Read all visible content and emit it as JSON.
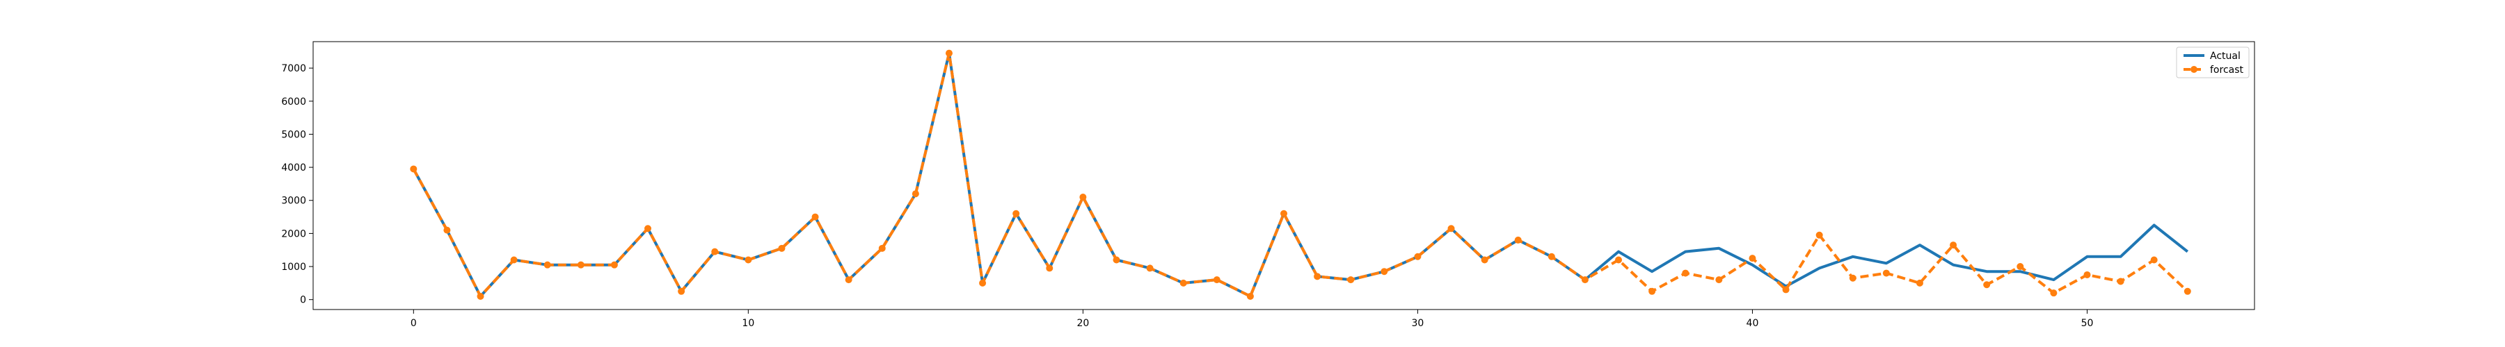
{
  "chart_data": {
    "type": "line",
    "title": "",
    "xlabel": "",
    "ylabel": "",
    "xlim": [
      -3,
      55
    ],
    "ylim": [
      -300,
      7800
    ],
    "xticks": [
      0,
      10,
      20,
      30,
      40,
      50
    ],
    "yticks": [
      0,
      1000,
      2000,
      3000,
      4000,
      5000,
      6000,
      7000
    ],
    "grid": false,
    "legend": "top-right",
    "series": [
      {
        "name": "Actual",
        "color": "#1f77b4",
        "style": "solid",
        "marker": "none",
        "x": [
          0,
          1,
          2,
          3,
          4,
          5,
          6,
          7,
          8,
          9,
          10,
          11,
          12,
          13,
          14,
          15,
          16,
          17,
          18,
          19,
          20,
          21,
          22,
          23,
          24,
          25,
          26,
          27,
          28,
          29,
          30,
          31,
          32,
          33,
          34,
          35,
          36,
          37,
          38,
          39,
          40,
          41,
          42,
          43,
          44,
          45,
          46,
          47,
          48,
          49,
          50,
          51,
          52,
          53
        ],
        "y": [
          3950,
          2100,
          100,
          1200,
          1050,
          1050,
          1050,
          2150,
          250,
          1450,
          1200,
          1550,
          2500,
          600,
          1550,
          3200,
          7450,
          500,
          2600,
          950,
          3100,
          1200,
          950,
          500,
          600,
          100,
          2600,
          700,
          600,
          850,
          1300,
          2150,
          1200,
          1800,
          1300,
          600,
          1450,
          850,
          1450,
          1550,
          1050,
          400,
          950,
          1300,
          1100,
          1650,
          1050,
          850,
          850,
          600,
          1300,
          1300,
          2250,
          1450
        ]
      },
      {
        "name": "forcast",
        "color": "#ff7f0e",
        "style": "dashed",
        "marker": "circle",
        "x": [
          0,
          1,
          2,
          3,
          4,
          5,
          6,
          7,
          8,
          9,
          10,
          11,
          12,
          13,
          14,
          15,
          16,
          17,
          18,
          19,
          20,
          21,
          22,
          23,
          24,
          25,
          26,
          27,
          28,
          29,
          30,
          31,
          32,
          33,
          34,
          35,
          36,
          37,
          38,
          39,
          40,
          41,
          42,
          43,
          44,
          45,
          46,
          47,
          48,
          49,
          50,
          51,
          52,
          53
        ],
        "y": [
          3950,
          2100,
          100,
          1200,
          1050,
          1050,
          1050,
          2150,
          250,
          1450,
          1200,
          1550,
          2500,
          600,
          1550,
          3200,
          7450,
          500,
          2600,
          950,
          3100,
          1200,
          950,
          500,
          600,
          100,
          2600,
          700,
          600,
          850,
          1300,
          2150,
          1200,
          1800,
          1300,
          600,
          1200,
          250,
          800,
          600,
          1250,
          300,
          1950,
          650,
          800,
          500,
          1650,
          450,
          1000,
          200,
          750,
          550,
          1200,
          250
        ]
      }
    ]
  }
}
